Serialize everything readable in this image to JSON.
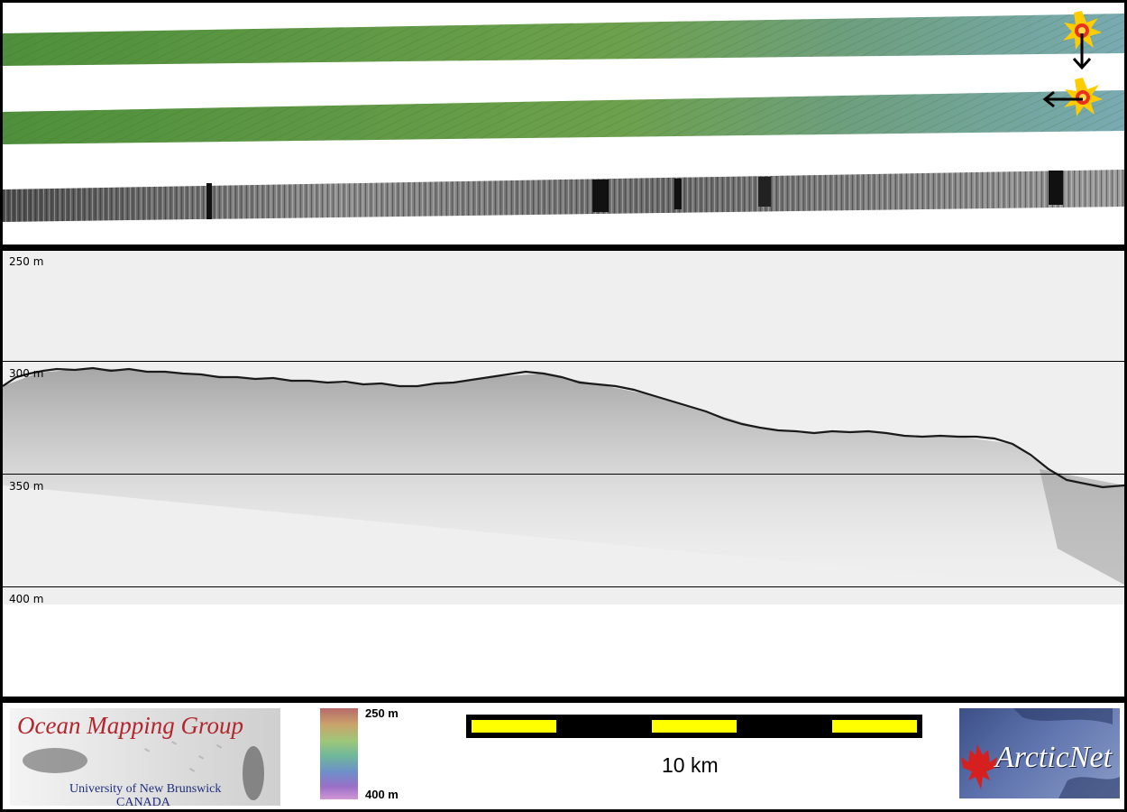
{
  "depth_labels": [
    "250 m",
    "300 m",
    "350 m",
    "400 m"
  ],
  "colorbar": {
    "top_label": "250 m",
    "bottom_label": "400 m"
  },
  "scalebar": {
    "label": "10 km"
  },
  "logos": {
    "ocean_mapping": {
      "title": "Ocean Mapping Group",
      "university": "University of New Brunswick",
      "country": "CANADA"
    },
    "arcticnet": {
      "name": "ArcticNet"
    }
  },
  "icons": [
    "explosion-marker-icon",
    "arrow-down-icon",
    "arrow-left-icon",
    "maple-leaf-icon"
  ],
  "colors": {
    "swath_green": "#5f9a4a",
    "swath_teal": "#6fa6a8",
    "scale_yellow": "#ffff00",
    "omg_red": "#b3262e",
    "omg_blue": "#1f2d7a"
  }
}
